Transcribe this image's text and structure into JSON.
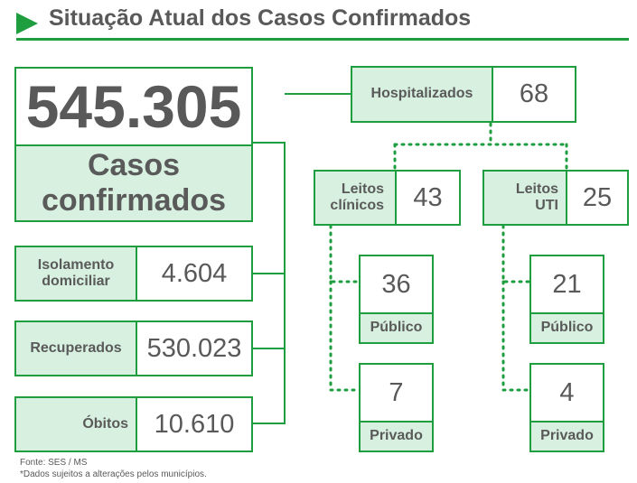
{
  "title": "Situação Atual dos Casos Confirmados",
  "colors": {
    "accent": "#1e9e3e",
    "label_bg": "#d7f0e0",
    "text": "#595959"
  },
  "total": {
    "value": "545.305",
    "label": "Casos confirmados"
  },
  "isolamento": {
    "label": "Isolamento domiciliar",
    "value": "4.604"
  },
  "recuperados": {
    "label": "Recuperados",
    "value": "530.023"
  },
  "obitos": {
    "label": "Óbitos",
    "value": "10.610"
  },
  "hospitalizados": {
    "label": "Hospitalizados",
    "value": "68"
  },
  "leitos_clinicos": {
    "label": "Leitos clínicos",
    "value": "43",
    "publico": {
      "value": "36",
      "label": "Público"
    },
    "privado": {
      "value": "7",
      "label": "Privado"
    }
  },
  "leitos_uti": {
    "label": "Leitos UTI",
    "value": "25",
    "publico": {
      "value": "21",
      "label": "Público"
    },
    "privado": {
      "value": "4",
      "label": "Privado"
    }
  },
  "footer": {
    "source": "Fonte: SES / MS",
    "note": "*Dados sujeitos a alterações pelos municípios."
  }
}
